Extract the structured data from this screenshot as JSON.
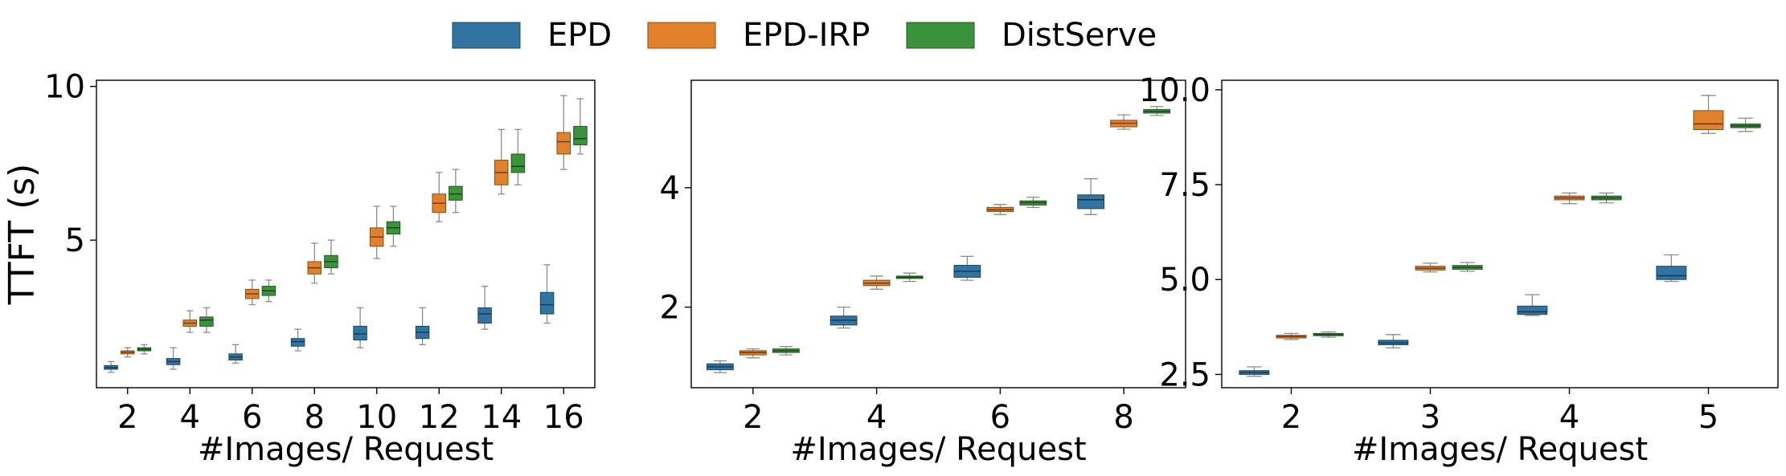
{
  "legend": {
    "placement": "top-center",
    "items": [
      {
        "label": "EPD",
        "color": "#3274a1"
      },
      {
        "label": "EPD-IRP",
        "color": "#e1812c"
      },
      {
        "label": "DistServe",
        "color": "#3a923a"
      }
    ]
  },
  "chart_data": [
    {
      "type": "box",
      "title": "",
      "xlabel": "#Images/ Request",
      "ylabel": "TTFT (s)",
      "categories": [
        "2",
        "4",
        "6",
        "8",
        "10",
        "12",
        "14",
        "16"
      ],
      "ylim": [
        0.2,
        10.2
      ],
      "yticks": [
        5,
        10
      ],
      "ytick_labels": [
        "5",
        "10"
      ],
      "series": [
        {
          "name": "EPD",
          "color": "#3274a1",
          "boxes": [
            {
              "min": 0.7,
              "q1": 0.8,
              "median": 0.85,
              "q3": 0.92,
              "max": 1.05
            },
            {
              "min": 0.8,
              "q1": 0.95,
              "median": 1.05,
              "q3": 1.15,
              "max": 1.5
            },
            {
              "min": 1.0,
              "q1": 1.1,
              "median": 1.2,
              "q3": 1.3,
              "max": 1.6
            },
            {
              "min": 1.4,
              "q1": 1.55,
              "median": 1.7,
              "q3": 1.8,
              "max": 2.1
            },
            {
              "min": 1.5,
              "q1": 1.75,
              "median": 1.95,
              "q3": 2.2,
              "max": 2.8
            },
            {
              "min": 1.6,
              "q1": 1.8,
              "median": 2.0,
              "q3": 2.2,
              "max": 2.8
            },
            {
              "min": 2.1,
              "q1": 2.3,
              "median": 2.6,
              "q3": 2.8,
              "max": 3.5
            },
            {
              "min": 2.3,
              "q1": 2.6,
              "median": 2.9,
              "q3": 3.3,
              "max": 4.2
            }
          ]
        },
        {
          "name": "EPD-IRP",
          "color": "#e1812c",
          "boxes": [
            {
              "min": 1.2,
              "q1": 1.3,
              "median": 1.35,
              "q3": 1.4,
              "max": 1.5
            },
            {
              "min": 2.0,
              "q1": 2.2,
              "median": 2.3,
              "q3": 2.4,
              "max": 2.7
            },
            {
              "min": 2.9,
              "q1": 3.1,
              "median": 3.25,
              "q3": 3.4,
              "max": 3.7
            },
            {
              "min": 3.6,
              "q1": 3.9,
              "median": 4.1,
              "q3": 4.3,
              "max": 4.9
            },
            {
              "min": 4.4,
              "q1": 4.8,
              "median": 5.1,
              "q3": 5.4,
              "max": 6.1
            },
            {
              "min": 5.6,
              "q1": 5.9,
              "median": 6.2,
              "q3": 6.5,
              "max": 7.2
            },
            {
              "min": 6.5,
              "q1": 6.8,
              "median": 7.2,
              "q3": 7.6,
              "max": 8.6
            },
            {
              "min": 7.3,
              "q1": 7.8,
              "median": 8.2,
              "q3": 8.5,
              "max": 9.7
            }
          ]
        },
        {
          "name": "DistServe",
          "color": "#3a923a",
          "boxes": [
            {
              "min": 1.3,
              "q1": 1.4,
              "median": 1.45,
              "q3": 1.5,
              "max": 1.6
            },
            {
              "min": 2.0,
              "q1": 2.2,
              "median": 2.4,
              "q3": 2.5,
              "max": 2.8
            },
            {
              "min": 3.0,
              "q1": 3.2,
              "median": 3.35,
              "q3": 3.5,
              "max": 3.7
            },
            {
              "min": 3.9,
              "q1": 4.1,
              "median": 4.3,
              "q3": 4.5,
              "max": 5.0
            },
            {
              "min": 4.8,
              "q1": 5.2,
              "median": 5.4,
              "q3": 5.6,
              "max": 6.1
            },
            {
              "min": 5.9,
              "q1": 6.3,
              "median": 6.5,
              "q3": 6.75,
              "max": 7.3
            },
            {
              "min": 6.8,
              "q1": 7.2,
              "median": 7.4,
              "q3": 7.8,
              "max": 8.6
            },
            {
              "min": 7.8,
              "q1": 8.1,
              "median": 8.3,
              "q3": 8.7,
              "max": 9.6
            }
          ]
        }
      ]
    },
    {
      "type": "box",
      "title": "",
      "xlabel": "#Images/ Request",
      "ylabel": "",
      "categories": [
        "2",
        "4",
        "6",
        "8"
      ],
      "ylim": [
        0.65,
        5.8
      ],
      "yticks": [
        2,
        4
      ],
      "ytick_labels": [
        "2",
        "4"
      ],
      "series": [
        {
          "name": "EPD",
          "color": "#3274a1",
          "boxes": [
            {
              "min": 0.9,
              "q1": 0.95,
              "median": 1.0,
              "q3": 1.05,
              "max": 1.1
            },
            {
              "min": 1.65,
              "q1": 1.7,
              "median": 1.78,
              "q3": 1.85,
              "max": 2.0
            },
            {
              "min": 2.45,
              "q1": 2.5,
              "median": 2.6,
              "q3": 2.7,
              "max": 2.85
            },
            {
              "min": 3.55,
              "q1": 3.65,
              "median": 3.8,
              "q3": 3.88,
              "max": 4.15
            }
          ]
        },
        {
          "name": "EPD-IRP",
          "color": "#e1812c",
          "boxes": [
            {
              "min": 1.15,
              "q1": 1.2,
              "median": 1.24,
              "q3": 1.27,
              "max": 1.3
            },
            {
              "min": 2.3,
              "q1": 2.36,
              "median": 2.4,
              "q3": 2.45,
              "max": 2.52
            },
            {
              "min": 3.55,
              "q1": 3.6,
              "median": 3.63,
              "q3": 3.67,
              "max": 3.72
            },
            {
              "min": 4.98,
              "q1": 5.02,
              "median": 5.08,
              "q3": 5.13,
              "max": 5.22
            }
          ]
        },
        {
          "name": "DistServe",
          "color": "#3a923a",
          "boxes": [
            {
              "min": 1.2,
              "q1": 1.24,
              "median": 1.27,
              "q3": 1.3,
              "max": 1.34
            },
            {
              "min": 2.43,
              "q1": 2.48,
              "median": 2.5,
              "q3": 2.52,
              "max": 2.57
            },
            {
              "min": 3.67,
              "q1": 3.71,
              "median": 3.75,
              "q3": 3.78,
              "max": 3.84
            },
            {
              "min": 5.21,
              "q1": 5.25,
              "median": 5.28,
              "q3": 5.31,
              "max": 5.36
            }
          ]
        }
      ]
    },
    {
      "type": "box",
      "title": "",
      "xlabel": "#Images/ Request",
      "ylabel": "",
      "categories": [
        "2",
        "3",
        "4",
        "5"
      ],
      "ylim": [
        2.15,
        10.25
      ],
      "yticks": [
        2.5,
        5.0,
        7.5,
        10.0
      ],
      "ytick_labels": [
        "2.5",
        "5.0",
        "7.5",
        "10.0"
      ],
      "series": [
        {
          "name": "EPD",
          "color": "#3274a1",
          "boxes": [
            {
              "min": 2.45,
              "q1": 2.5,
              "median": 2.55,
              "q3": 2.6,
              "max": 2.7
            },
            {
              "min": 3.2,
              "q1": 3.28,
              "median": 3.33,
              "q3": 3.4,
              "max": 3.55
            },
            {
              "min": 4.05,
              "q1": 4.08,
              "median": 4.15,
              "q3": 4.3,
              "max": 4.6
            },
            {
              "min": 4.95,
              "q1": 5.0,
              "median": 5.1,
              "q3": 5.35,
              "max": 5.65
            }
          ]
        },
        {
          "name": "EPD-IRP",
          "color": "#e1812c",
          "boxes": [
            {
              "min": 3.42,
              "q1": 3.46,
              "median": 3.5,
              "q3": 3.53,
              "max": 3.58
            },
            {
              "min": 5.2,
              "q1": 5.25,
              "median": 5.3,
              "q3": 5.35,
              "max": 5.43
            },
            {
              "min": 7.0,
              "q1": 7.1,
              "median": 7.15,
              "q3": 7.2,
              "max": 7.28
            },
            {
              "min": 8.85,
              "q1": 8.95,
              "median": 9.1,
              "q3": 9.45,
              "max": 9.85
            }
          ]
        },
        {
          "name": "DistServe",
          "color": "#3a923a",
          "boxes": [
            {
              "min": 3.48,
              "q1": 3.52,
              "median": 3.55,
              "q3": 3.58,
              "max": 3.62
            },
            {
              "min": 5.22,
              "q1": 5.27,
              "median": 5.32,
              "q3": 5.37,
              "max": 5.45
            },
            {
              "min": 7.02,
              "q1": 7.1,
              "median": 7.15,
              "q3": 7.2,
              "max": 7.28
            },
            {
              "min": 8.9,
              "q1": 9.0,
              "median": 9.05,
              "q3": 9.1,
              "max": 9.25
            }
          ]
        }
      ]
    }
  ]
}
